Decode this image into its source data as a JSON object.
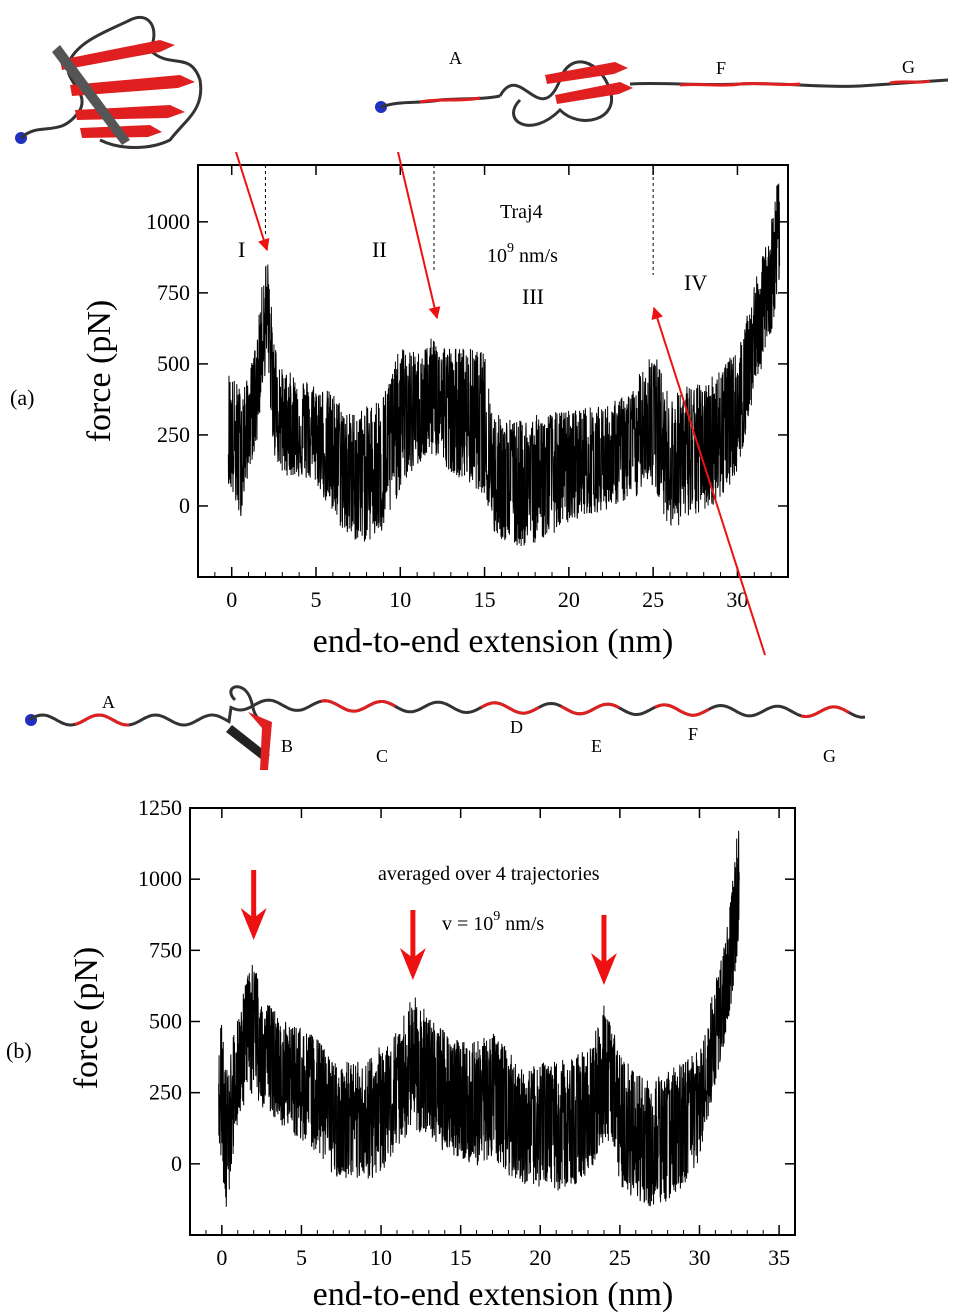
{
  "figure": {
    "panel_labels": [
      "(a)",
      "(b)"
    ]
  },
  "colors": {
    "trace": "#000000",
    "arrow": "#ee1111",
    "strand_red": "#e02020",
    "strand_gray": "#555555",
    "terminus": "#2030c0"
  },
  "structures": {
    "top_left": {
      "description_icon": "folded-protein-icon"
    },
    "top_right": {
      "segment_labels": [
        "A",
        "F",
        "G"
      ]
    },
    "middle": {
      "segment_labels": [
        "A",
        "B",
        "C",
        "D",
        "E",
        "F",
        "G"
      ]
    }
  },
  "chart_data": [
    {
      "type": "line",
      "panel": "(a)",
      "xlabel": "end-to-end extension (nm)",
      "ylabel": "force (pN)",
      "xlim": [
        -2,
        33
      ],
      "ylim": [
        -250,
        1200
      ],
      "xticks": [
        0,
        5,
        10,
        15,
        20,
        25,
        30
      ],
      "yticks": [
        0,
        250,
        500,
        750,
        1000
      ],
      "annotation_lines": [
        "Traj4",
        "10",
        "9",
        " nm/s"
      ],
      "regions": [
        "I",
        "II",
        "III",
        "IV"
      ],
      "region_boundaries_nm": [
        2,
        12,
        25
      ],
      "peaks": [
        {
          "x": 2.0,
          "y": 900
        },
        {
          "x": 12.0,
          "y": 640
        },
        {
          "x": 24.8,
          "y": 580
        }
      ],
      "envelope": {
        "x": [
          -0.2,
          0.5,
          1.0,
          1.5,
          1.8,
          2.1,
          2.5,
          3.0,
          4.0,
          5.0,
          6.0,
          7.0,
          8.0,
          9.0,
          10.0,
          11.0,
          12.0,
          13.0,
          14.0,
          15.0,
          15.5,
          16.0,
          17.0,
          18.0,
          19.0,
          20.0,
          21.0,
          22.0,
          23.0,
          24.0,
          24.5,
          25.0,
          26.0,
          27.0,
          28.0,
          29.0,
          30.0,
          30.5,
          31.0,
          31.5,
          32.0,
          32.5
        ],
        "upper": [
          480,
          420,
          450,
          600,
          780,
          890,
          600,
          480,
          460,
          430,
          400,
          330,
          350,
          400,
          560,
          540,
          600,
          560,
          560,
          540,
          330,
          320,
          300,
          320,
          330,
          340,
          350,
          350,
          380,
          420,
          540,
          560,
          380,
          430,
          430,
          500,
          540,
          650,
          780,
          880,
          1000,
          1200
        ],
        "lower": [
          80,
          -50,
          120,
          220,
          400,
          500,
          180,
          110,
          100,
          80,
          -40,
          -120,
          -130,
          -100,
          60,
          140,
          180,
          120,
          80,
          40,
          -100,
          -120,
          -150,
          -130,
          -100,
          -60,
          -30,
          -20,
          10,
          20,
          100,
          60,
          -80,
          -60,
          -20,
          20,
          120,
          250,
          400,
          500,
          600,
          800
        ],
        "center": [
          260,
          150,
          280,
          420,
          620,
          700,
          360,
          280,
          270,
          240,
          180,
          100,
          110,
          150,
          300,
          330,
          380,
          330,
          310,
          280,
          100,
          90,
          80,
          100,
          110,
          130,
          150,
          160,
          180,
          210,
          300,
          300,
          150,
          180,
          200,
          250,
          320,
          450,
          580,
          680,
          800,
          1000
        ]
      }
    },
    {
      "type": "line",
      "panel": "(b)",
      "xlabel": "end-to-end extension (nm)",
      "ylabel": "force (pN)",
      "xlim": [
        -2,
        36
      ],
      "ylim": [
        -250,
        1250
      ],
      "xticks": [
        0,
        5,
        10,
        15,
        20,
        25,
        30,
        35
      ],
      "yticks": [
        0,
        250,
        500,
        750,
        1000,
        1250
      ],
      "annotation_lines": [
        "averaged over 4 trajectories",
        "v = 10",
        "9",
        " nm/s"
      ],
      "peak_markers_nm": [
        2,
        12,
        24
      ],
      "envelope": {
        "x": [
          -0.2,
          0.3,
          0.7,
          1.0,
          1.5,
          2.0,
          2.5,
          3.0,
          4.0,
          5.0,
          6.0,
          7.0,
          8.0,
          9.0,
          10.0,
          11.0,
          12.0,
          13.0,
          14.0,
          15.0,
          16.0,
          17.0,
          18.0,
          19.0,
          20.0,
          21.0,
          22.0,
          23.0,
          24.0,
          24.5,
          25.0,
          26.0,
          27.0,
          28.0,
          29.0,
          30.0,
          30.5,
          31.0,
          31.5,
          32.0,
          32.5
        ],
        "upper": [
          590,
          340,
          440,
          530,
          640,
          720,
          600,
          560,
          500,
          480,
          440,
          360,
          360,
          360,
          420,
          470,
          600,
          520,
          470,
          430,
          450,
          460,
          400,
          320,
          360,
          360,
          380,
          400,
          560,
          500,
          380,
          330,
          300,
          330,
          360,
          400,
          520,
          640,
          760,
          950,
          1250
        ],
        "lower": [
          80,
          -180,
          30,
          150,
          220,
          250,
          200,
          180,
          120,
          80,
          40,
          -40,
          -80,
          -60,
          -40,
          60,
          120,
          80,
          40,
          20,
          -10,
          20,
          -40,
          -70,
          -90,
          -100,
          -80,
          -40,
          70,
          80,
          -80,
          -130,
          -170,
          -140,
          -100,
          0,
          150,
          280,
          400,
          560,
          800
        ],
        "center": [
          320,
          100,
          250,
          330,
          420,
          470,
          390,
          350,
          300,
          270,
          240,
          150,
          130,
          140,
          180,
          260,
          350,
          290,
          240,
          210,
          220,
          230,
          180,
          130,
          130,
          120,
          140,
          170,
          300,
          280,
          140,
          90,
          60,
          90,
          120,
          180,
          300,
          440,
          560,
          720,
          1000
        ]
      }
    }
  ]
}
